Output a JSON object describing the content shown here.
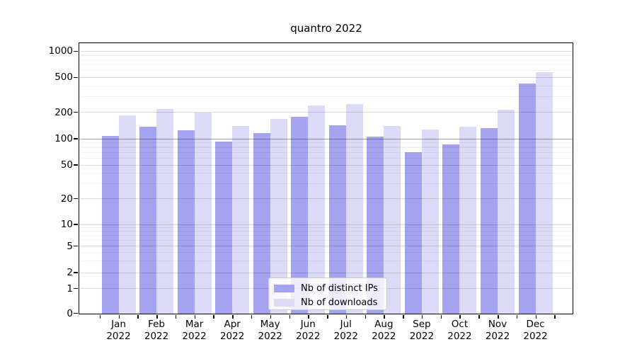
{
  "chart_data": {
    "type": "bar",
    "title": "quantro 2022",
    "categories": [
      "Jan 2022",
      "Feb 2022",
      "Mar 2022",
      "Apr 2022",
      "May 2022",
      "Jun 2022",
      "Jul 2022",
      "Aug 2022",
      "Sep 2022",
      "Oct 2022",
      "Nov 2022",
      "Dec 2022"
    ],
    "series": [
      {
        "name": "Nb of distinct IPs",
        "color": "#a3a3ef",
        "values": [
          107,
          137,
          125,
          93,
          116,
          177,
          142,
          106,
          70,
          86,
          132,
          425
        ]
      },
      {
        "name": "Nb of downloads",
        "color": "#dbdbf8",
        "values": [
          184,
          217,
          200,
          139,
          168,
          239,
          250,
          139,
          127,
          137,
          214,
          573
        ]
      }
    ],
    "xlabel": "",
    "ylabel": "",
    "yscale": "symlog",
    "ylim": [
      0,
      1100
    ],
    "yticks": [
      0,
      1,
      2,
      5,
      10,
      20,
      50,
      100,
      200,
      500,
      1000
    ],
    "minor_gridlines": [
      3,
      4,
      6,
      7,
      8,
      9,
      30,
      40,
      60,
      70,
      80,
      90,
      300,
      400,
      600,
      700,
      800,
      900
    ],
    "grid": true,
    "legend": {
      "position": "lower center"
    }
  }
}
